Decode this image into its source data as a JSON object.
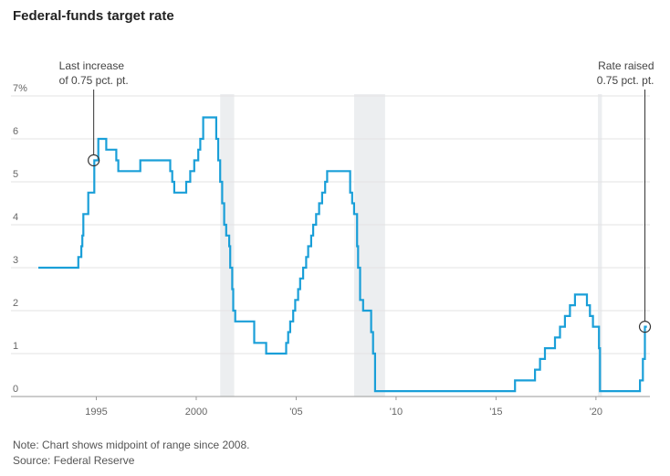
{
  "chart_data": {
    "type": "line",
    "title": "Federal-funds target rate",
    "xlabel": "",
    "ylabel": "",
    "xlim": [
      1992.1,
      2022.7
    ],
    "ylim": [
      0,
      7
    ],
    "x_ticks": [
      {
        "value": 1995,
        "label": "1995"
      },
      {
        "value": 2000,
        "label": "2000"
      },
      {
        "value": 2005,
        "label": "'05"
      },
      {
        "value": 2010,
        "label": "'10"
      },
      {
        "value": 2015,
        "label": "'15"
      },
      {
        "value": 2020,
        "label": "'20"
      }
    ],
    "y_ticks": [
      {
        "value": 0,
        "label": "0"
      },
      {
        "value": 1,
        "label": "1"
      },
      {
        "value": 2,
        "label": "2"
      },
      {
        "value": 3,
        "label": "3"
      },
      {
        "value": 4,
        "label": "4"
      },
      {
        "value": 5,
        "label": "5"
      },
      {
        "value": 6,
        "label": "6"
      },
      {
        "value": 7,
        "label": "7%"
      }
    ],
    "grid": true,
    "series_color": "#1a9fd8",
    "shading_color": "#eceef0",
    "recessions": [
      [
        2001.2,
        2001.9
      ],
      [
        2007.9,
        2009.45
      ],
      [
        2020.1,
        2020.3
      ]
    ],
    "series": [
      {
        "steps": [
          [
            1992.1,
            3.0
          ],
          [
            1994.1,
            3.25
          ],
          [
            1994.25,
            3.5
          ],
          [
            1994.3,
            3.75
          ],
          [
            1994.35,
            4.25
          ],
          [
            1994.6,
            4.75
          ],
          [
            1994.9,
            5.5
          ],
          [
            1995.1,
            6.0
          ],
          [
            1995.5,
            5.75
          ],
          [
            1996.0,
            5.5
          ],
          [
            1996.1,
            5.25
          ],
          [
            1997.2,
            5.5
          ],
          [
            1998.7,
            5.25
          ],
          [
            1998.8,
            5.0
          ],
          [
            1998.9,
            4.75
          ],
          [
            1999.5,
            5.0
          ],
          [
            1999.7,
            5.25
          ],
          [
            1999.9,
            5.5
          ],
          [
            2000.1,
            5.75
          ],
          [
            2000.2,
            6.0
          ],
          [
            2000.35,
            6.5
          ],
          [
            2001.0,
            6.0
          ],
          [
            2001.1,
            5.5
          ],
          [
            2001.2,
            5.0
          ],
          [
            2001.3,
            4.5
          ],
          [
            2001.4,
            4.0
          ],
          [
            2001.5,
            3.75
          ],
          [
            2001.65,
            3.5
          ],
          [
            2001.7,
            3.0
          ],
          [
            2001.8,
            2.5
          ],
          [
            2001.85,
            2.0
          ],
          [
            2001.95,
            1.75
          ],
          [
            2002.9,
            1.25
          ],
          [
            2003.5,
            1.0
          ],
          [
            2004.5,
            1.25
          ],
          [
            2004.6,
            1.5
          ],
          [
            2004.7,
            1.75
          ],
          [
            2004.85,
            2.0
          ],
          [
            2004.95,
            2.25
          ],
          [
            2005.1,
            2.5
          ],
          [
            2005.2,
            2.75
          ],
          [
            2005.35,
            3.0
          ],
          [
            2005.5,
            3.25
          ],
          [
            2005.6,
            3.5
          ],
          [
            2005.75,
            3.75
          ],
          [
            2005.85,
            4.0
          ],
          [
            2006.0,
            4.25
          ],
          [
            2006.15,
            4.5
          ],
          [
            2006.3,
            4.75
          ],
          [
            2006.45,
            5.0
          ],
          [
            2006.55,
            5.25
          ],
          [
            2007.7,
            4.75
          ],
          [
            2007.8,
            4.5
          ],
          [
            2007.9,
            4.25
          ],
          [
            2008.05,
            3.5
          ],
          [
            2008.1,
            3.0
          ],
          [
            2008.2,
            2.25
          ],
          [
            2008.35,
            2.0
          ],
          [
            2008.75,
            1.5
          ],
          [
            2008.85,
            1.0
          ],
          [
            2008.95,
            0.125
          ],
          [
            2015.95,
            0.375
          ],
          [
            2016.95,
            0.625
          ],
          [
            2017.2,
            0.875
          ],
          [
            2017.45,
            1.125
          ],
          [
            2017.95,
            1.375
          ],
          [
            2018.2,
            1.625
          ],
          [
            2018.45,
            1.875
          ],
          [
            2018.7,
            2.125
          ],
          [
            2018.95,
            2.375
          ],
          [
            2019.55,
            2.125
          ],
          [
            2019.7,
            1.875
          ],
          [
            2019.85,
            1.625
          ],
          [
            2020.15,
            1.125
          ],
          [
            2020.2,
            0.125
          ],
          [
            2022.2,
            0.375
          ],
          [
            2022.35,
            0.875
          ],
          [
            2022.45,
            1.625
          ],
          [
            2022.55,
            1.625
          ]
        ]
      }
    ],
    "annotations": [
      {
        "lines": [
          "Last increase",
          "of 0.75 pct. pt."
        ],
        "x": 1994.87,
        "y": 5.5,
        "align": "start"
      },
      {
        "lines": [
          "Rate raised",
          "0.75 pct. pt."
        ],
        "x": 2022.45,
        "y": 1.625,
        "align": "end"
      }
    ]
  },
  "note": "Note: Chart shows midpoint of range since 2008.",
  "source": "Source: Federal Reserve"
}
